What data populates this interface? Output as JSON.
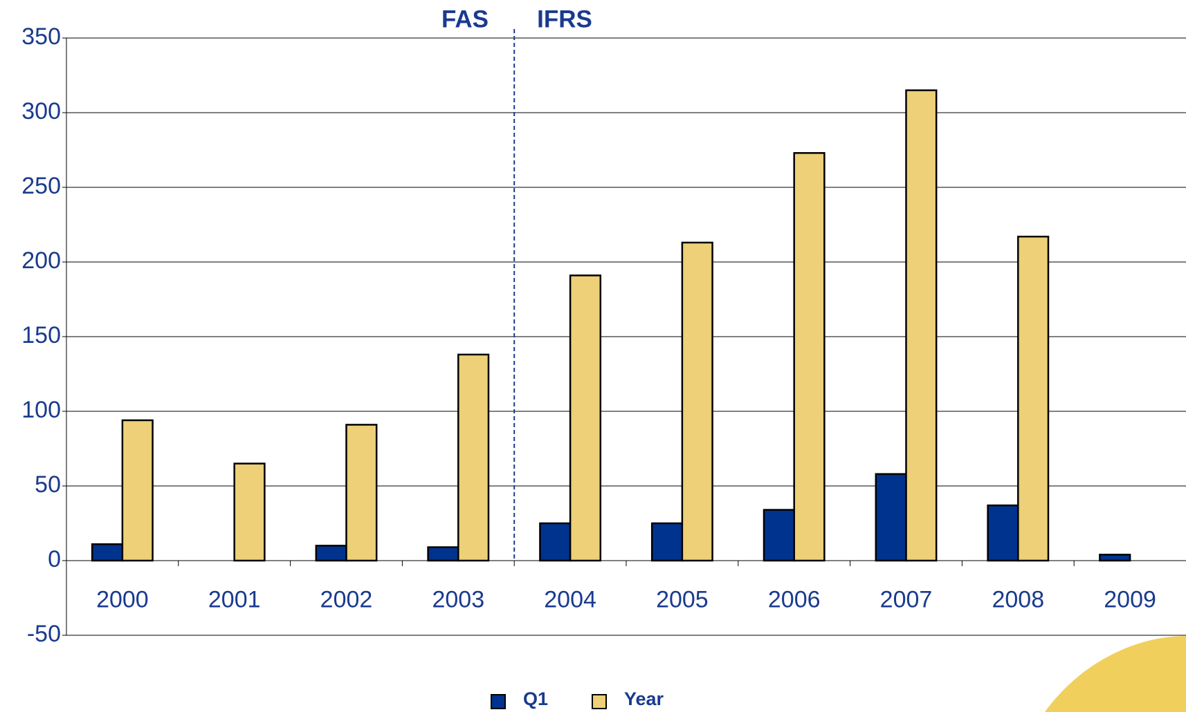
{
  "chart_data": {
    "type": "bar",
    "annotations": [
      "FAS",
      "IFRS"
    ],
    "categories": [
      "2000",
      "2001",
      "2002",
      "2003",
      "2004",
      "2005",
      "2006",
      "2007",
      "2008",
      "2009"
    ],
    "series": [
      {
        "name": "Q1",
        "color": "#00338d",
        "values": [
          11,
          null,
          10,
          9,
          25,
          25,
          34,
          58,
          37,
          4
        ]
      },
      {
        "name": "Year",
        "color": "#edd077",
        "values": [
          94,
          65,
          91,
          138,
          191,
          213,
          273,
          315,
          217,
          null
        ]
      }
    ],
    "ylim": [
      -50,
      350
    ],
    "yticks": [
      -50,
      0,
      50,
      100,
      150,
      200,
      250,
      300,
      350
    ],
    "grid": true
  }
}
